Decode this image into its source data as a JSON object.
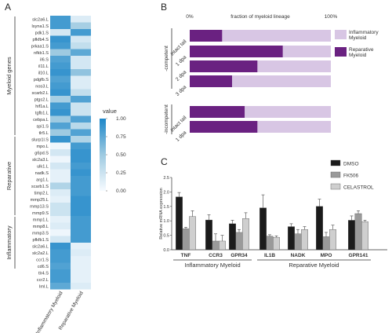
{
  "panels": {
    "a": "A",
    "b": "B",
    "c": "C"
  },
  "chart_data": [
    {
      "type": "heatmap",
      "columns": [
        "Inflammatory Myeloid",
        "Reparative Myeloid"
      ],
      "groups": [
        {
          "name": "Myeloid genes",
          "start": 0,
          "end": 17
        },
        {
          "name": "Reparative",
          "start": 18,
          "end": 29
        },
        {
          "name": "Inflammatory",
          "start": 30,
          "end": 37
        }
      ],
      "rows": [
        "slc2a6.L",
        "lsyna1.S",
        "pdk1.S",
        "pfkfb4.S",
        "prkaa1.S",
        "nfkb1.S",
        "il6.S",
        "il11.L",
        "il10.L",
        "pdgfb.S",
        "nos3.L",
        "scarb2.L",
        "ptgs2.L",
        "hif1a.L",
        "tgfb1.L",
        "cebpa.L",
        "spi1.S",
        "tlr5.L",
        "slurp1l.S",
        "mpo.L",
        "g6pd.S",
        "slc2a3.L",
        "ulk1.L",
        "nadk.S",
        "arg1.L",
        "scarb1.S",
        "timp2.L",
        "mmp25.L",
        "mmp13.S",
        "mmp9.S",
        "mmp1.L",
        "mmp8.L",
        "mmp3.S",
        "pfkfb1.S",
        "slc2a6.L",
        "slc2a2.L",
        "ccr1.S",
        "cd6.S",
        "tlr4.S",
        "ccr2.L",
        "Iml.L"
      ],
      "values": [
        [
          0.85,
          0.15
        ],
        [
          0.85,
          0.45
        ],
        [
          0.2,
          0.85
        ],
        [
          0.9,
          0.2
        ],
        [
          0.85,
          0.3
        ],
        [
          0.5,
          0.75
        ],
        [
          0.8,
          0.2
        ],
        [
          0.85,
          0.2
        ],
        [
          0.9,
          0.55
        ],
        [
          0.8,
          0.15
        ],
        [
          0.85,
          0.15
        ],
        [
          0.9,
          0.3
        ],
        [
          0.45,
          0.8
        ],
        [
          0.85,
          0.25
        ],
        [
          0.9,
          0.25
        ],
        [
          0.5,
          0.8
        ],
        [
          0.8,
          0.35
        ],
        [
          0.5,
          0.8
        ],
        [
          0.9,
          0.4
        ],
        [
          0.05,
          0.85
        ],
        [
          0.2,
          0.9
        ],
        [
          0.05,
          0.9
        ],
        [
          0.2,
          0.85
        ],
        [
          0.1,
          0.9
        ],
        [
          0.1,
          0.85
        ],
        [
          0.4,
          0.85
        ],
        [
          0.15,
          0.85
        ],
        [
          0.1,
          0.9
        ],
        [
          0.25,
          0.9
        ],
        [
          0.25,
          0.9
        ],
        [
          0.1,
          0.85
        ],
        [
          0.15,
          0.85
        ],
        [
          0.05,
          0.85
        ],
        [
          0.2,
          0.85
        ],
        [
          0.9,
          0.1
        ],
        [
          0.85,
          0.15
        ],
        [
          0.85,
          0.1
        ],
        [
          0.8,
          0.1
        ],
        [
          0.85,
          0.1
        ],
        [
          0.85,
          0.1
        ],
        [
          0.75,
          0.15
        ]
      ],
      "colorbar": {
        "title": "value",
        "min": 0,
        "max": 1,
        "ticks": [
          "1.00",
          "0.75",
          "0.50",
          "0.25",
          "0.00"
        ]
      }
    },
    {
      "type": "bar",
      "orientation": "horizontal",
      "stacked": true,
      "xlabel": "fraction of myeloid lineage",
      "xticks": [
        "0%",
        "100%"
      ],
      "row_labels": [
        "intact tail",
        "1 dpa",
        "2 dpa",
        "3 dpa",
        "intact tail",
        "1 dpa"
      ],
      "row_groups": [
        {
          "name": "-competent",
          "start": 0,
          "end": 3
        },
        {
          "name": "-incompetent",
          "start": 4,
          "end": 5
        }
      ],
      "series": [
        {
          "name": "Reparative Myeloid",
          "values": [
            0.23,
            0.66,
            0.48,
            0.3,
            0.39,
            0.48
          ]
        },
        {
          "name": "Inflammatory Myeloid",
          "values": [
            0.77,
            0.34,
            0.52,
            0.7,
            0.61,
            0.52
          ]
        }
      ],
      "colors": {
        "Reparative Myeloid": "#6a2181",
        "Inflammatory Myeloid": "#d8c6e4"
      }
    },
    {
      "type": "bar",
      "ylabel": "Relative mRNA expression",
      "ylim": [
        0,
        2.5
      ],
      "yticks": [
        "0.0",
        "0.5",
        "1.0",
        "1.5",
        "2.0",
        "2.5"
      ],
      "categories": [
        "TNF",
        "CCR3",
        "GPR34",
        "IL1B",
        "NADK",
        "MPO",
        "GPR141"
      ],
      "category_groups": [
        {
          "name": "Inflammatory Myeloid",
          "start": 0,
          "end": 2
        },
        {
          "name": "Reparative Myeloid",
          "start": 3,
          "end": 6
        }
      ],
      "series": [
        {
          "name": "DMSO",
          "values": [
            1.83,
            1.03,
            0.9,
            1.45,
            0.8,
            1.5,
            1.02
          ],
          "errors": [
            0.15,
            0.18,
            0.12,
            0.45,
            0.1,
            0.25,
            0.15
          ],
          "color": "#1b1b1b"
        },
        {
          "name": "FK506",
          "values": [
            0.73,
            0.3,
            0.6,
            0.47,
            0.55,
            0.45,
            1.25
          ],
          "errors": [
            0.05,
            0.25,
            0.1,
            0.05,
            0.15,
            0.15,
            0.1
          ],
          "color": "#9a9a9a"
        },
        {
          "name": "CELASTROL",
          "values": [
            1.15,
            0.3,
            1.08,
            0.43,
            0.7,
            0.7,
            0.97
          ],
          "errors": [
            0.2,
            0.2,
            0.2,
            0.05,
            0.1,
            0.15,
            0.05
          ],
          "color": "#cfcfcf"
        }
      ]
    }
  ]
}
